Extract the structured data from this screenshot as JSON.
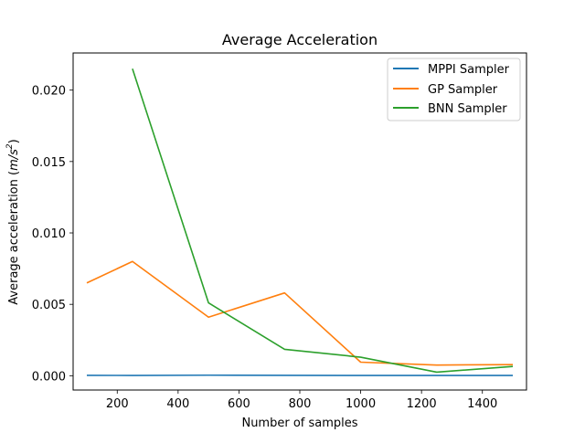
{
  "chart_data": {
    "type": "line",
    "title": "Average Acceleration",
    "xlabel": "Number of samples",
    "ylabel_prefix": "Average acceleration (",
    "ylabel_unit_base": "m/s",
    "ylabel_unit_exp": "2",
    "ylabel_suffix": ")",
    "xlim": [
      55,
      1545
    ],
    "ylim": [
      -0.001,
      0.0226
    ],
    "xticks": [
      200,
      400,
      600,
      800,
      1000,
      1200,
      1400
    ],
    "xtick_labels": [
      "200",
      "400",
      "600",
      "800",
      "1000",
      "1200",
      "1400"
    ],
    "yticks": [
      0.0,
      0.005,
      0.01,
      0.015,
      0.02
    ],
    "ytick_labels": [
      "0.000",
      "0.005",
      "0.010",
      "0.015",
      "0.020"
    ],
    "grid": false,
    "legend_position": "top-right",
    "series": [
      {
        "name": "MPPI Sampler",
        "color": "#1f77b4",
        "x": [
          100,
          250,
          500,
          750,
          1000,
          1250,
          1500
        ],
        "values": [
          3e-05,
          2e-05,
          4e-05,
          3e-05,
          2e-05,
          2e-05,
          2e-05
        ]
      },
      {
        "name": "GP Sampler",
        "color": "#ff7f0e",
        "x": [
          100,
          250,
          500,
          750,
          1000,
          1250,
          1500
        ],
        "values": [
          0.0065,
          0.008,
          0.0041,
          0.0058,
          0.00095,
          0.00075,
          0.00078
        ]
      },
      {
        "name": "BNN Sampler",
        "color": "#2ca02c",
        "x": [
          250,
          500,
          750,
          1000,
          1250,
          1500
        ],
        "values": [
          0.0215,
          0.0051,
          0.00185,
          0.0013,
          0.00025,
          0.00065
        ]
      }
    ]
  }
}
